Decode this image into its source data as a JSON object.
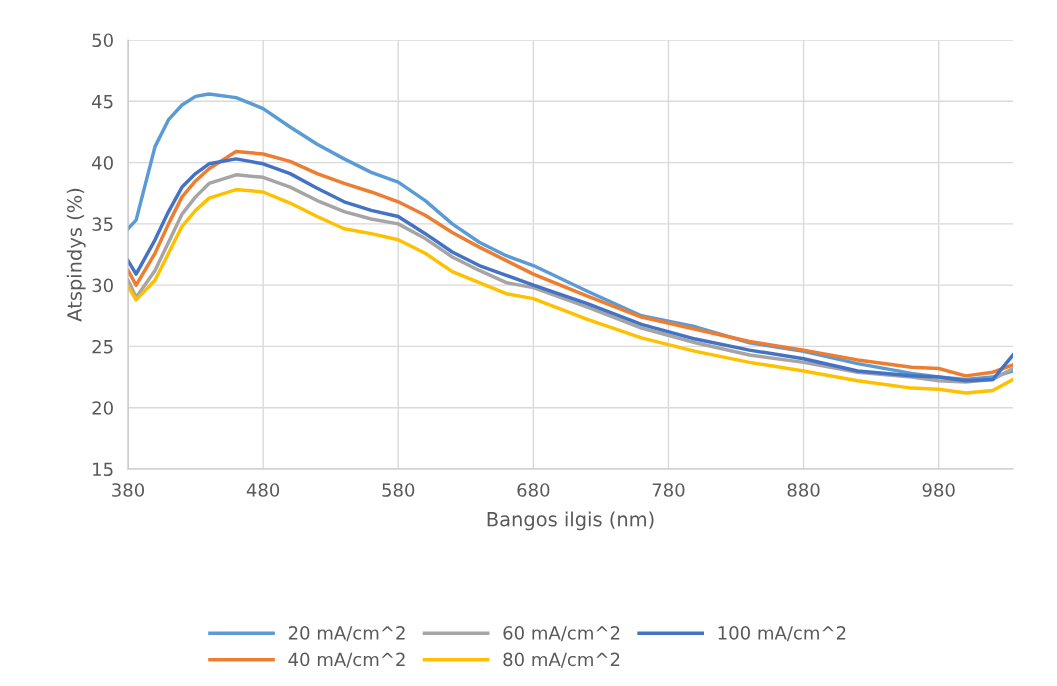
{
  "chart_data": {
    "type": "line",
    "xlabel": "Bangos ilgis (nm)",
    "ylabel": "Atspindys (%)",
    "x": [
      380,
      386,
      400,
      410,
      420,
      430,
      440,
      460,
      480,
      500,
      520,
      540,
      560,
      580,
      600,
      620,
      640,
      660,
      680,
      720,
      760,
      800,
      840,
      880,
      920,
      960,
      980,
      1000,
      1020,
      1035
    ],
    "series": [
      {
        "name": "20 mA/cm^2",
        "color": "#5b9bd5",
        "values": [
          34.6,
          35.3,
          41.3,
          43.5,
          44.7,
          45.4,
          45.6,
          45.3,
          44.4,
          42.9,
          41.5,
          40.3,
          39.2,
          38.4,
          36.9,
          35.0,
          33.5,
          32.4,
          31.6,
          29.5,
          27.5,
          26.6,
          25.3,
          24.6,
          23.6,
          22.8,
          22.5,
          22.3,
          22.5,
          23.0
        ]
      },
      {
        "name": "40 mA/cm^2",
        "color": "#ed7d31",
        "values": [
          31.2,
          30.0,
          32.6,
          35.0,
          37.2,
          38.5,
          39.5,
          40.9,
          40.7,
          40.1,
          39.1,
          38.3,
          37.6,
          36.8,
          35.7,
          34.3,
          33.1,
          32.0,
          30.9,
          29.1,
          27.4,
          26.4,
          25.4,
          24.7,
          23.9,
          23.3,
          23.2,
          22.6,
          22.9,
          23.5
        ]
      },
      {
        "name": "60 mA/cm^2",
        "color": "#a5a5a5",
        "values": [
          30.4,
          29.0,
          31.2,
          33.5,
          35.8,
          37.2,
          38.3,
          39.0,
          38.8,
          38.0,
          36.9,
          36.0,
          35.4,
          35.0,
          33.8,
          32.3,
          31.2,
          30.2,
          29.8,
          28.2,
          26.5,
          25.3,
          24.3,
          23.7,
          22.9,
          22.5,
          22.2,
          22.1,
          22.3,
          23.2
        ]
      },
      {
        "name": "80 mA/cm^2",
        "color": "#ffc000",
        "values": [
          29.9,
          28.8,
          30.4,
          32.6,
          34.8,
          36.1,
          37.1,
          37.8,
          37.6,
          36.7,
          35.6,
          34.6,
          34.2,
          33.7,
          32.6,
          31.1,
          30.2,
          29.3,
          28.9,
          27.2,
          25.7,
          24.6,
          23.7,
          23.0,
          22.2,
          21.6,
          21.5,
          21.2,
          21.4,
          22.3
        ]
      },
      {
        "name": "100 mA/cm^2",
        "color": "#4472c4",
        "values": [
          32.0,
          30.9,
          33.7,
          36.0,
          38.0,
          39.1,
          39.9,
          40.3,
          39.9,
          39.1,
          37.9,
          36.8,
          36.1,
          35.6,
          34.2,
          32.7,
          31.6,
          30.8,
          30.0,
          28.5,
          26.8,
          25.6,
          24.7,
          24.0,
          23.0,
          22.6,
          22.5,
          22.2,
          22.3,
          24.3
        ]
      }
    ],
    "xlim": [
      380,
      1035
    ],
    "xticks": [
      380,
      480,
      580,
      680,
      780,
      880,
      980
    ],
    "ylim": [
      15,
      50
    ],
    "yticks": [
      15,
      20,
      25,
      30,
      35,
      40,
      45,
      50
    ],
    "grid": true,
    "legend": "bottom",
    "marker": "none",
    "line_style": "solid"
  }
}
